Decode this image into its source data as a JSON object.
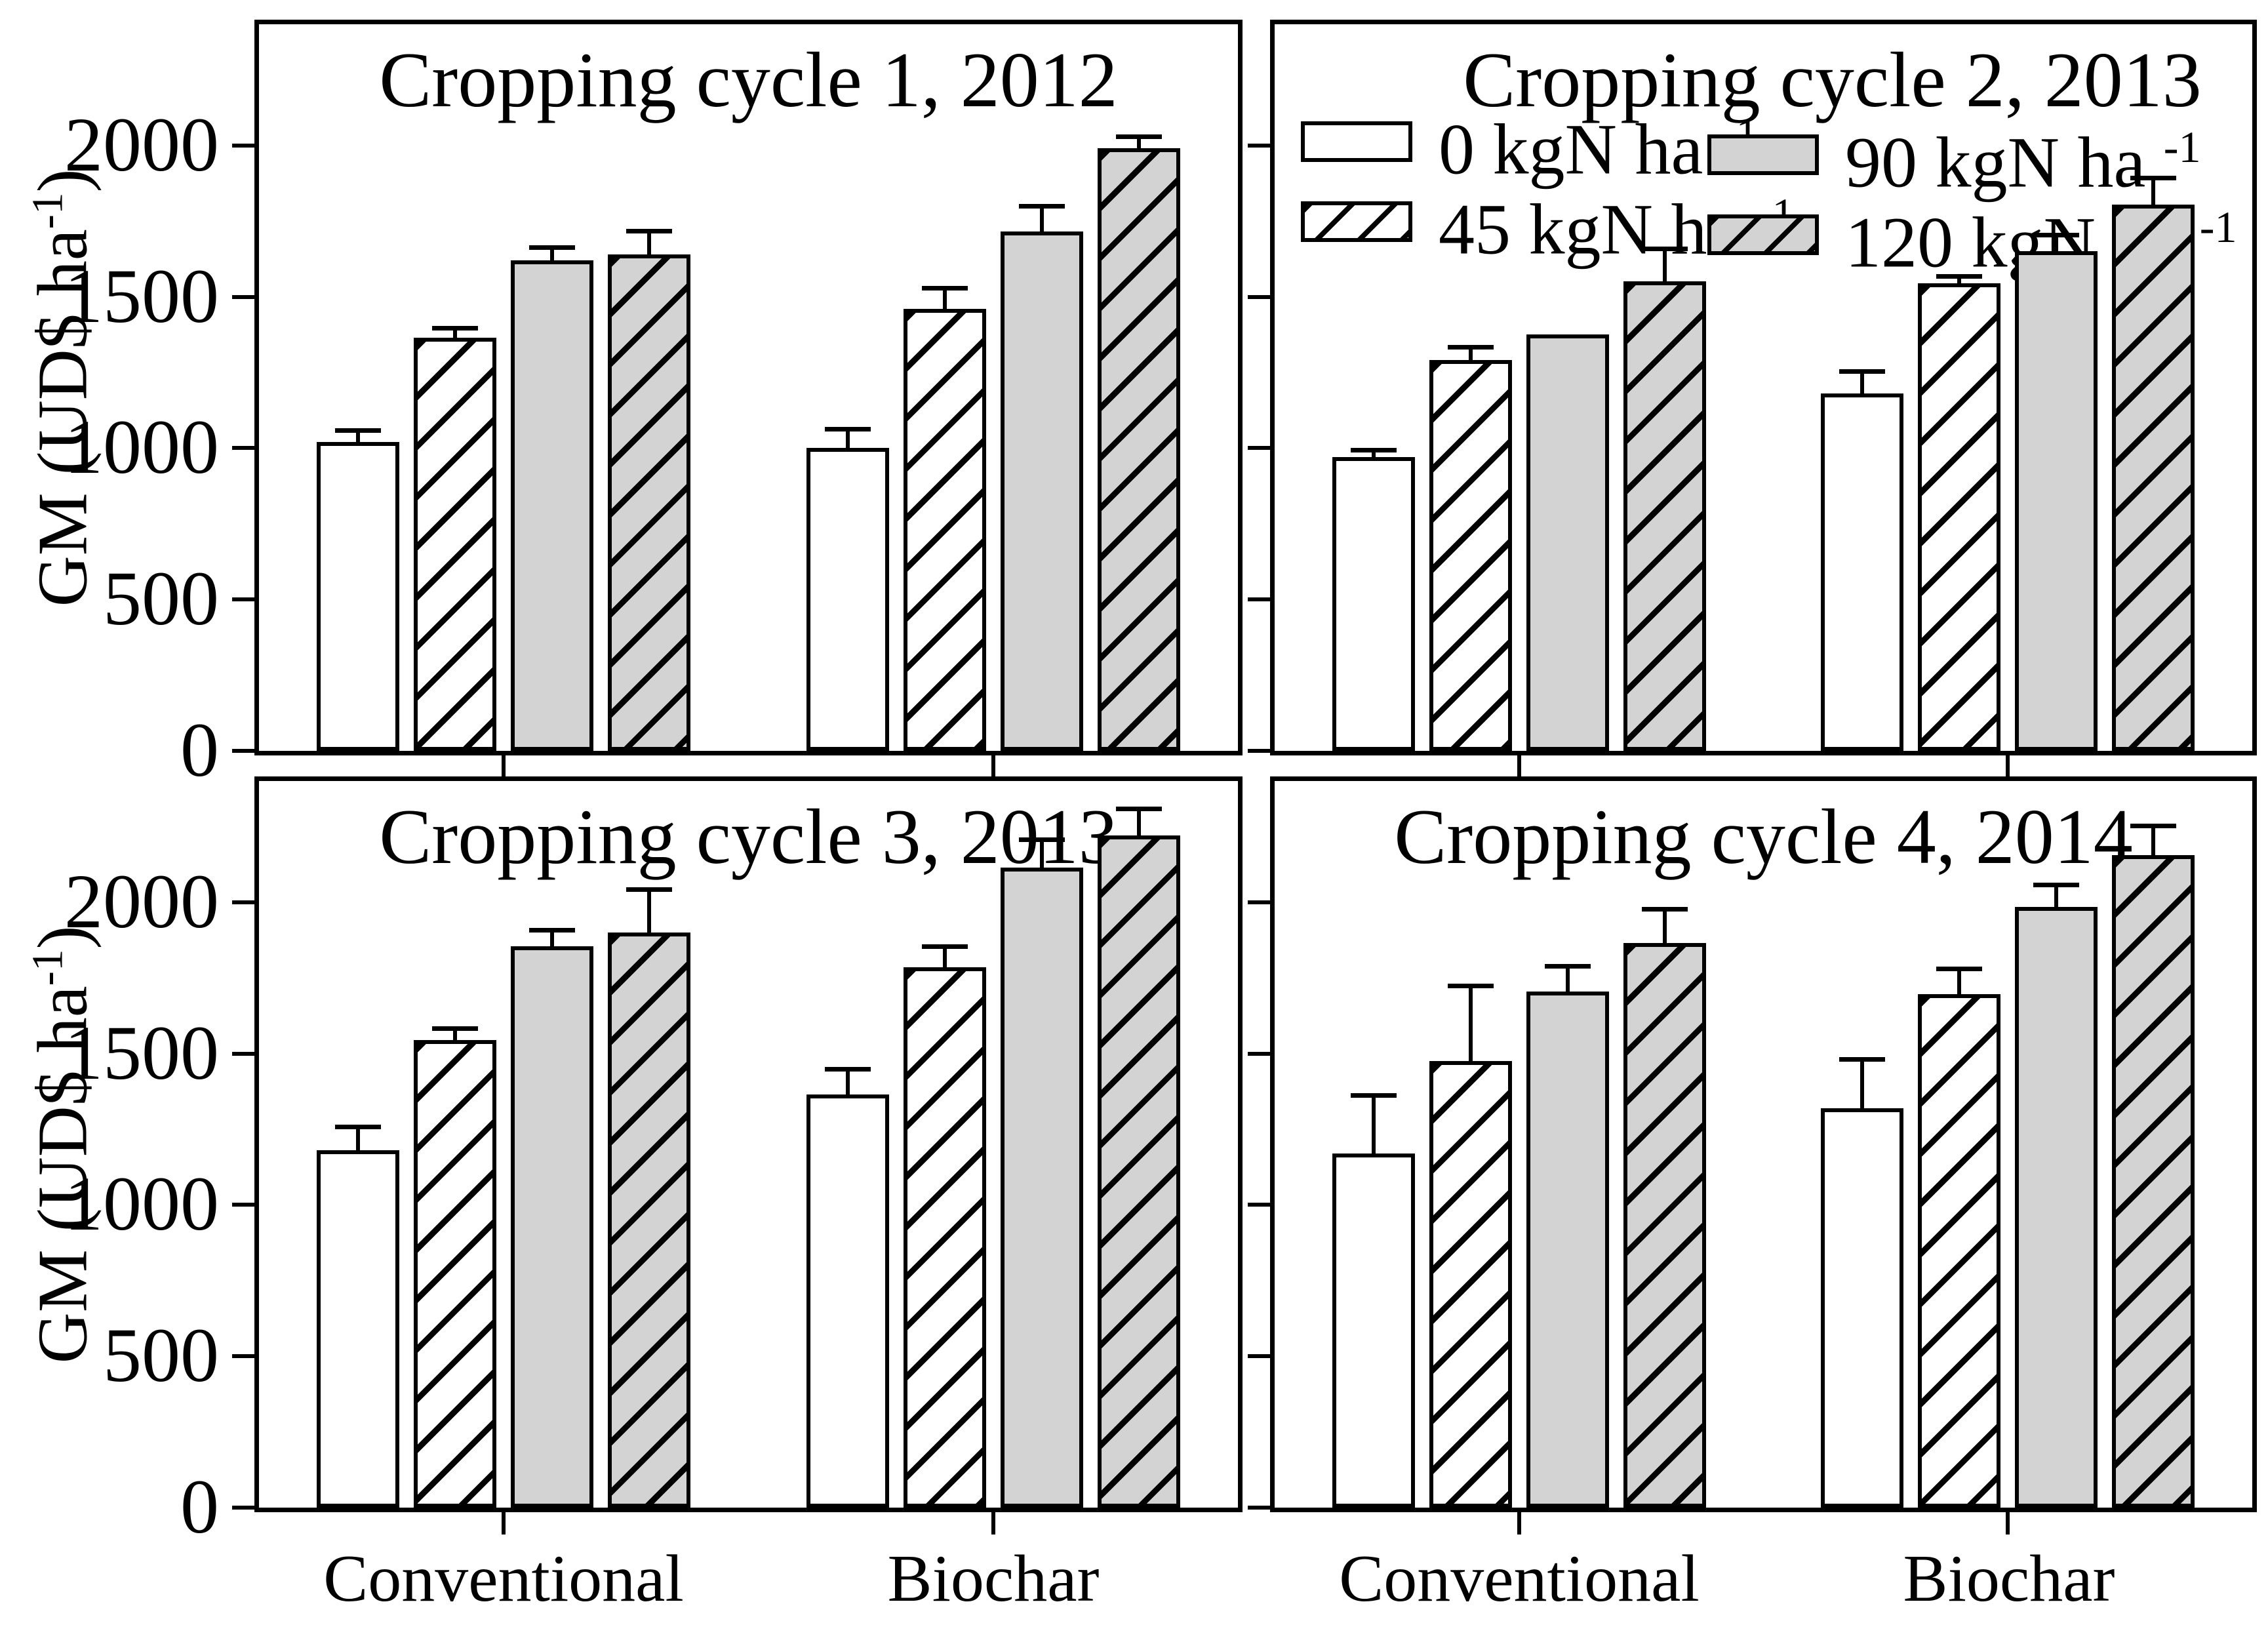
{
  "figure": {
    "background": "#ffffff",
    "line_color": "#000000",
    "bar_fill_white": "#ffffff",
    "bar_fill_gray": "#d3d3d3",
    "y_axis_title": {
      "base": "GM (UD$ ha",
      "sup": "-1",
      "suffix": ")"
    },
    "x_categories": [
      "Conventional",
      "Biochar"
    ],
    "y_ticks": [
      0,
      500,
      1000,
      1500,
      2000
    ],
    "y_max": 2400
  },
  "legend": {
    "items": [
      {
        "label_base": "0 kgN ha",
        "label_sup": "-1",
        "fill": "white",
        "hatch": false
      },
      {
        "label_base": "45 kgN ha",
        "label_sup": "-1",
        "fill": "white",
        "hatch": true
      },
      {
        "label_base": "90 kgN ha",
        "label_sup": "-1",
        "fill": "gray",
        "hatch": false
      },
      {
        "label_base": "120 kgN ha",
        "label_sup": "-1",
        "fill": "gray",
        "hatch": true
      }
    ]
  },
  "chart_data": [
    {
      "type": "bar",
      "title": "Cropping cycle 1, 2012",
      "categories": [
        "Conventional",
        "Biochar"
      ],
      "ylabel": "GM (UD$ ha-1)",
      "ylim": [
        0,
        2400
      ],
      "yticks": [
        0,
        500,
        1000,
        1500,
        2000
      ],
      "grid": false,
      "series": [
        {
          "name": "0 kgN ha-1",
          "fill": "white",
          "hatch": false,
          "values": [
            1020,
            1000
          ],
          "errors": [
            45,
            70
          ]
        },
        {
          "name": "45 kgN ha-1",
          "fill": "white",
          "hatch": true,
          "values": [
            1365,
            1460
          ],
          "errors": [
            40,
            75
          ]
        },
        {
          "name": "90 kgN ha-1",
          "fill": "gray",
          "hatch": false,
          "values": [
            1620,
            1715
          ],
          "errors": [
            50,
            90
          ]
        },
        {
          "name": "120 kgN ha-1",
          "fill": "gray",
          "hatch": true,
          "values": [
            1640,
            1990
          ],
          "errors": [
            85,
            45
          ]
        }
      ]
    },
    {
      "type": "bar",
      "title": "Cropping cycle 2, 2013",
      "categories": [
        "Conventional",
        "Biochar"
      ],
      "ylabel": "GM (UD$ ha-1)",
      "ylim": [
        0,
        2400
      ],
      "yticks": [
        0,
        500,
        1000,
        1500,
        2000
      ],
      "grid": false,
      "legend_position": "top-left-inside",
      "series": [
        {
          "name": "0 kgN ha-1",
          "fill": "white",
          "hatch": false,
          "values": [
            970,
            1180
          ],
          "errors": [
            30,
            80
          ]
        },
        {
          "name": "45 kgN ha-1",
          "fill": "white",
          "hatch": true,
          "values": [
            1290,
            1545
          ],
          "errors": [
            50,
            30
          ]
        },
        {
          "name": "90 kgN ha-1",
          "fill": "gray",
          "hatch": false,
          "values": [
            1375,
            1650
          ],
          "errors": [
            0,
            60
          ]
        },
        {
          "name": "120 kgN ha-1",
          "fill": "gray",
          "hatch": true,
          "values": [
            1550,
            1805
          ],
          "errors": [
            115,
            95
          ]
        }
      ]
    },
    {
      "type": "bar",
      "title": "Cropping cycle 3, 2013",
      "categories": [
        "Conventional",
        "Biochar"
      ],
      "ylabel": "GM (UD$ ha-1)",
      "ylim": [
        0,
        2400
      ],
      "yticks": [
        0,
        500,
        1000,
        1500,
        2000
      ],
      "grid": false,
      "series": [
        {
          "name": "0 kgN ha-1",
          "fill": "white",
          "hatch": false,
          "values": [
            1180,
            1365
          ],
          "errors": [
            85,
            90
          ]
        },
        {
          "name": "45 kgN ha-1",
          "fill": "white",
          "hatch": true,
          "values": [
            1545,
            1785
          ],
          "errors": [
            45,
            75
          ]
        },
        {
          "name": "90 kgN ha-1",
          "fill": "gray",
          "hatch": false,
          "values": [
            1855,
            2115
          ],
          "errors": [
            60,
            100
          ]
        },
        {
          "name": "120 kgN ha-1",
          "fill": "gray",
          "hatch": true,
          "values": [
            1900,
            2220
          ],
          "errors": [
            150,
            95
          ]
        }
      ]
    },
    {
      "type": "bar",
      "title": "Cropping cycle 4, 2014",
      "categories": [
        "Conventional",
        "Biochar"
      ],
      "ylabel": "GM (UD$ ha-1)",
      "ylim": [
        0,
        2400
      ],
      "yticks": [
        0,
        500,
        1000,
        1500,
        2000
      ],
      "grid": false,
      "series": [
        {
          "name": "0 kgN ha-1",
          "fill": "white",
          "hatch": false,
          "values": [
            1170,
            1320
          ],
          "errors": [
            200,
            170
          ]
        },
        {
          "name": "45 kgN ha-1",
          "fill": "white",
          "hatch": true,
          "values": [
            1475,
            1695
          ],
          "errors": [
            255,
            90
          ]
        },
        {
          "name": "90 kgN ha-1",
          "fill": "gray",
          "hatch": false,
          "values": [
            1705,
            1985
          ],
          "errors": [
            90,
            80
          ]
        },
        {
          "name": "120 kgN ha-1",
          "fill": "gray",
          "hatch": true,
          "values": [
            1865,
            2155
          ],
          "errors": [
            120,
            105
          ]
        }
      ]
    }
  ]
}
